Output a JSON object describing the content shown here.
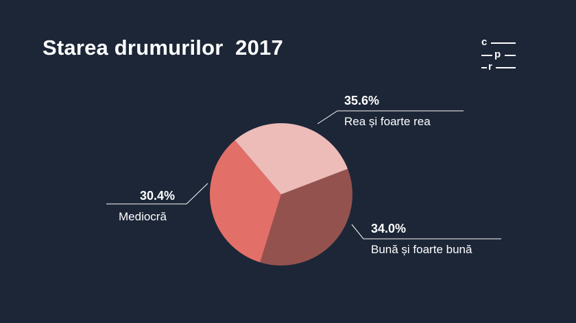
{
  "title": "Starea drumurilor  2017",
  "logo": {
    "c": "c",
    "p": "p",
    "r": "r"
  },
  "chart_data": {
    "type": "pie",
    "title": "Starea drumurilor  2017",
    "slices": [
      {
        "label": "Rea și foarte rea",
        "value": 35.6,
        "display": "35.6%",
        "color": "#94524e"
      },
      {
        "label": "Bună și foarte bună",
        "value": 34.0,
        "display": "34.0%",
        "color": "#e36f69"
      },
      {
        "label": "Mediocră",
        "value": 30.4,
        "display": "30.4%",
        "color": "#edbcb8"
      }
    ],
    "start_angle_deg": 339,
    "legend": "none (callout labels)"
  }
}
